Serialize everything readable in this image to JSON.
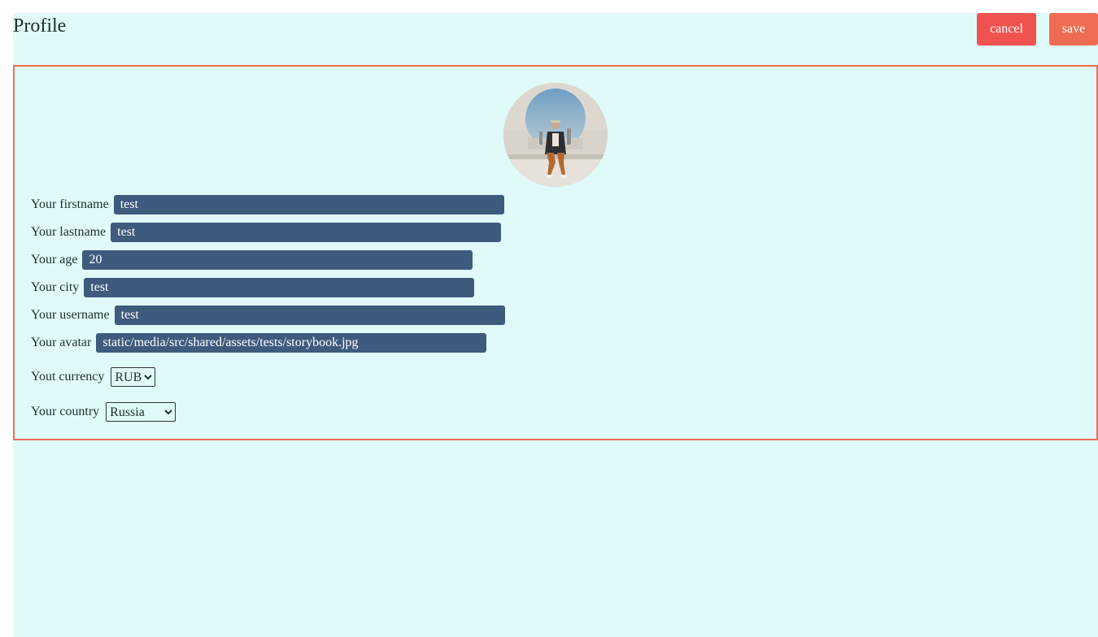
{
  "header": {
    "title": "Profile",
    "cancel_label": "cancel",
    "save_label": "save"
  },
  "profile": {
    "avatar_alt": "avatar",
    "fields": {
      "firstname": {
        "label": "Your firstname",
        "value": "test"
      },
      "lastname": {
        "label": "Your lastname",
        "value": "test"
      },
      "age": {
        "label": "Your age",
        "value": "20"
      },
      "city": {
        "label": "Your city",
        "value": "test"
      },
      "username": {
        "label": "Your username",
        "value": "test"
      },
      "avatar": {
        "label": "Your avatar",
        "value": "static/media/src/shared/assets/tests/storybook.jpg"
      }
    },
    "currency": {
      "label": "Yout currency",
      "selected": "RUB"
    },
    "country": {
      "label": "Your country",
      "selected": "Russia"
    }
  },
  "colors": {
    "page_bg": "#e0fafa",
    "input_bg": "#3e5b7e",
    "cancel_bg": "#ef5350",
    "save_bg": "#ee6d52",
    "card_border": "#ef6c55"
  }
}
